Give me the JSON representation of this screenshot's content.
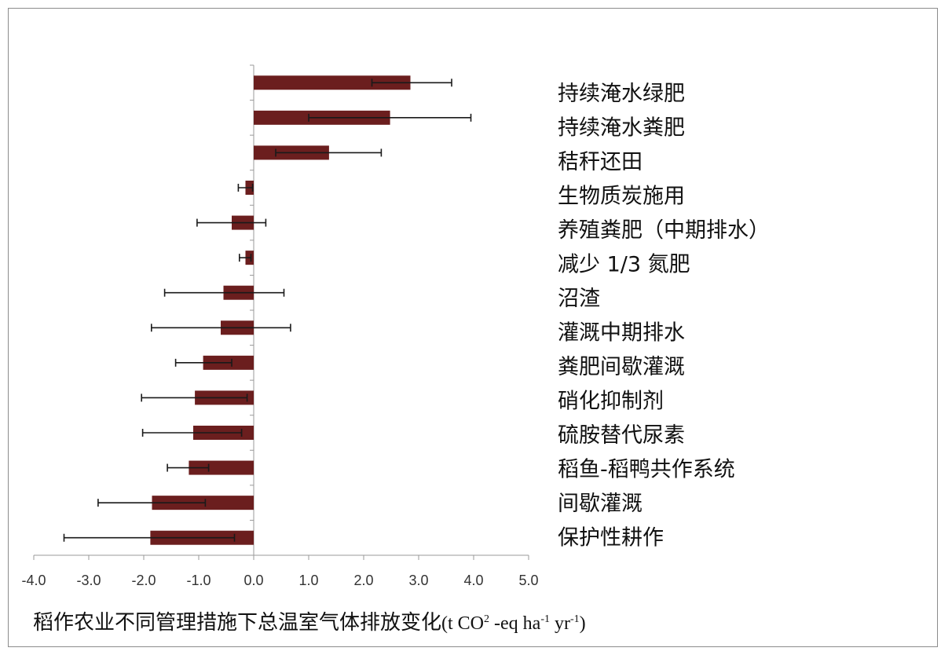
{
  "chart_data": {
    "type": "bar",
    "orientation": "horizontal",
    "categories": [
      "持续淹水绿肥",
      "持续淹水粪肥",
      "秸秆还田",
      "生物质炭施用",
      "养殖粪肥（中期排水）",
      "减少 1/3 氮肥",
      "沼渣",
      "灌溉中期排水",
      "粪肥间歇灌溉",
      "硝化抑制剂",
      "硫胺替代尿素",
      "稻鱼-稻鸭共作系统",
      "间歇灌溉",
      "保护性耕作"
    ],
    "values": [
      2.85,
      2.48,
      1.37,
      -0.15,
      -0.4,
      -0.15,
      -0.55,
      -0.6,
      -0.92,
      -1.07,
      -1.1,
      -1.18,
      -1.85,
      -1.88
    ],
    "error_low": [
      2.15,
      1.0,
      0.4,
      -0.28,
      -1.03,
      -0.26,
      -1.62,
      -1.86,
      -1.42,
      -2.04,
      -2.02,
      -1.57,
      -2.83,
      -3.45
    ],
    "error_high": [
      3.6,
      3.95,
      2.32,
      -0.02,
      0.22,
      -0.05,
      0.55,
      0.67,
      -0.4,
      -0.12,
      -0.22,
      -0.82,
      -0.88,
      -0.35
    ],
    "xlim": [
      -4.0,
      5.0
    ],
    "xticks": [
      "-4.0",
      "-3.0",
      "-2.0",
      "-1.0",
      "0.0",
      "1.0",
      "2.0",
      "3.0",
      "4.0",
      "5.0"
    ],
    "xlabel_text": "稻作农业不同管理措施下总温室气体排放变化",
    "xlabel_unit": {
      "t_co": "(t CO",
      "sup1": "2",
      "eq_ha": " -eq ha",
      "sup2": "-1",
      "yr": " yr",
      "sup3": "-1",
      "close": ")"
    },
    "bar_color": "#6b1e1e",
    "error_color": "#1a1a1a",
    "grid": false,
    "legend": "none"
  }
}
